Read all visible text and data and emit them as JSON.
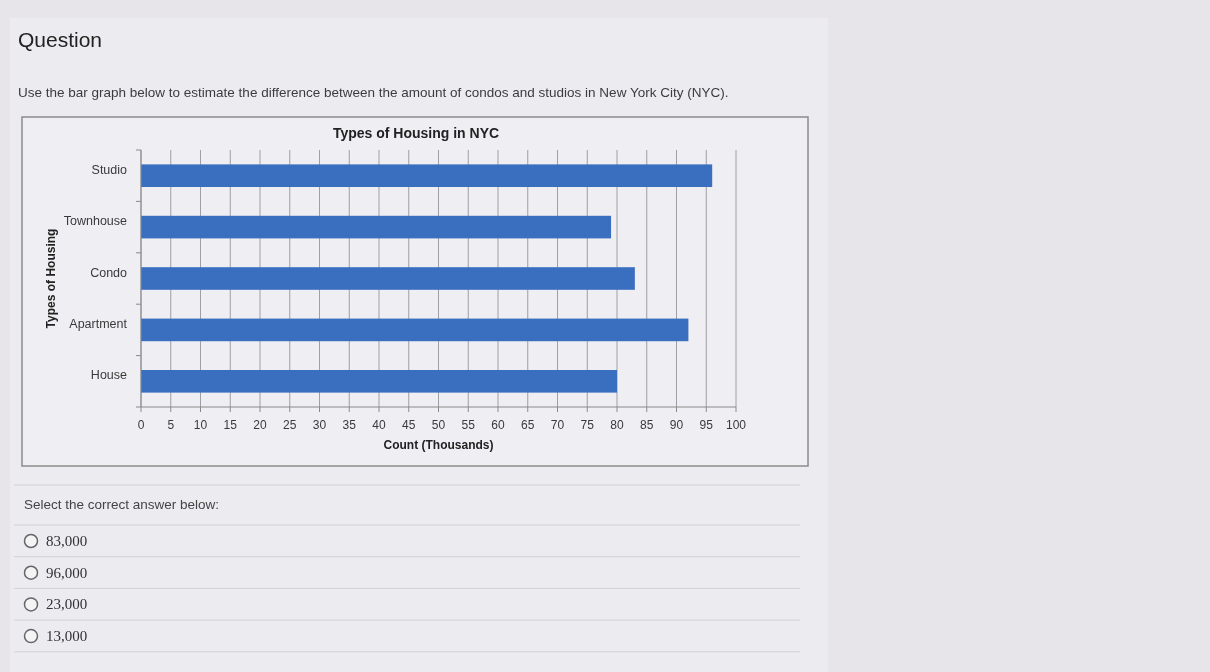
{
  "chart_data": {
    "type": "bar",
    "orientation": "horizontal",
    "title": "Types of Housing in NYC",
    "xlabel": "Count (Thousands)",
    "ylabel": "Types of Housing",
    "categories": [
      "Studio",
      "Townhouse",
      "Condo",
      "Apartment",
      "House"
    ],
    "values": [
      96,
      79,
      83,
      92,
      80
    ],
    "color": "#3a6fc0",
    "xlim": [
      0,
      100
    ],
    "xticks": [
      0,
      5,
      10,
      15,
      20,
      25,
      30,
      35,
      40,
      45,
      50,
      55,
      60,
      65,
      70,
      75,
      80,
      85,
      90,
      95,
      100
    ],
    "grid": "x",
    "annotations": [
      "Question",
      "Use the bar graph below to estimate the difference between the amount of condos and studios in New York City (NYC).",
      "Select the correct answer below:",
      "83,000",
      "96,000",
      "23,000",
      "13,000"
    ]
  }
}
